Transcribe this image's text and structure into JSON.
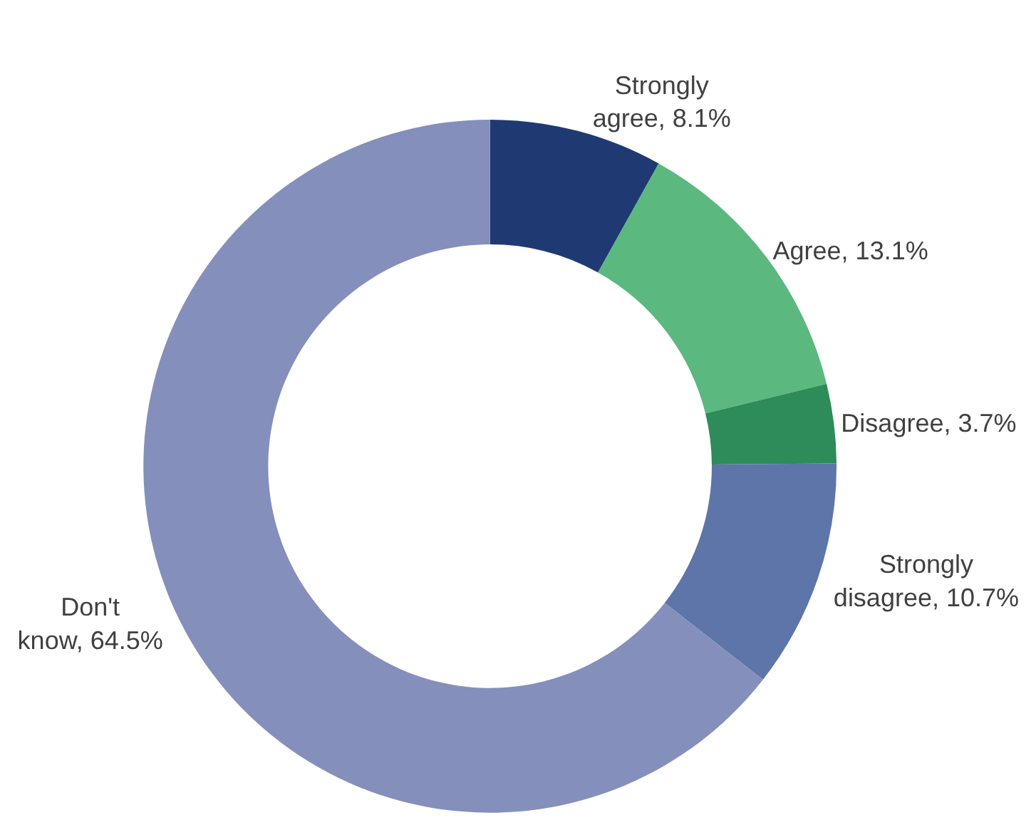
{
  "chart_data": {
    "type": "donut",
    "categories": [
      "Strongly agree",
      "Agree",
      "Disagree",
      "Strongly disagree",
      "Don't know"
    ],
    "values": [
      8.1,
      13.1,
      3.7,
      10.7,
      64.5
    ],
    "value_labels": [
      "8.1%",
      "13.1%",
      "3.7%",
      "10.7%",
      "64.5%"
    ],
    "colors": [
      "#1f3a73",
      "#5bb87f",
      "#2e8b5a",
      "#5e75aa",
      "#848fbb"
    ],
    "legend": false
  }
}
